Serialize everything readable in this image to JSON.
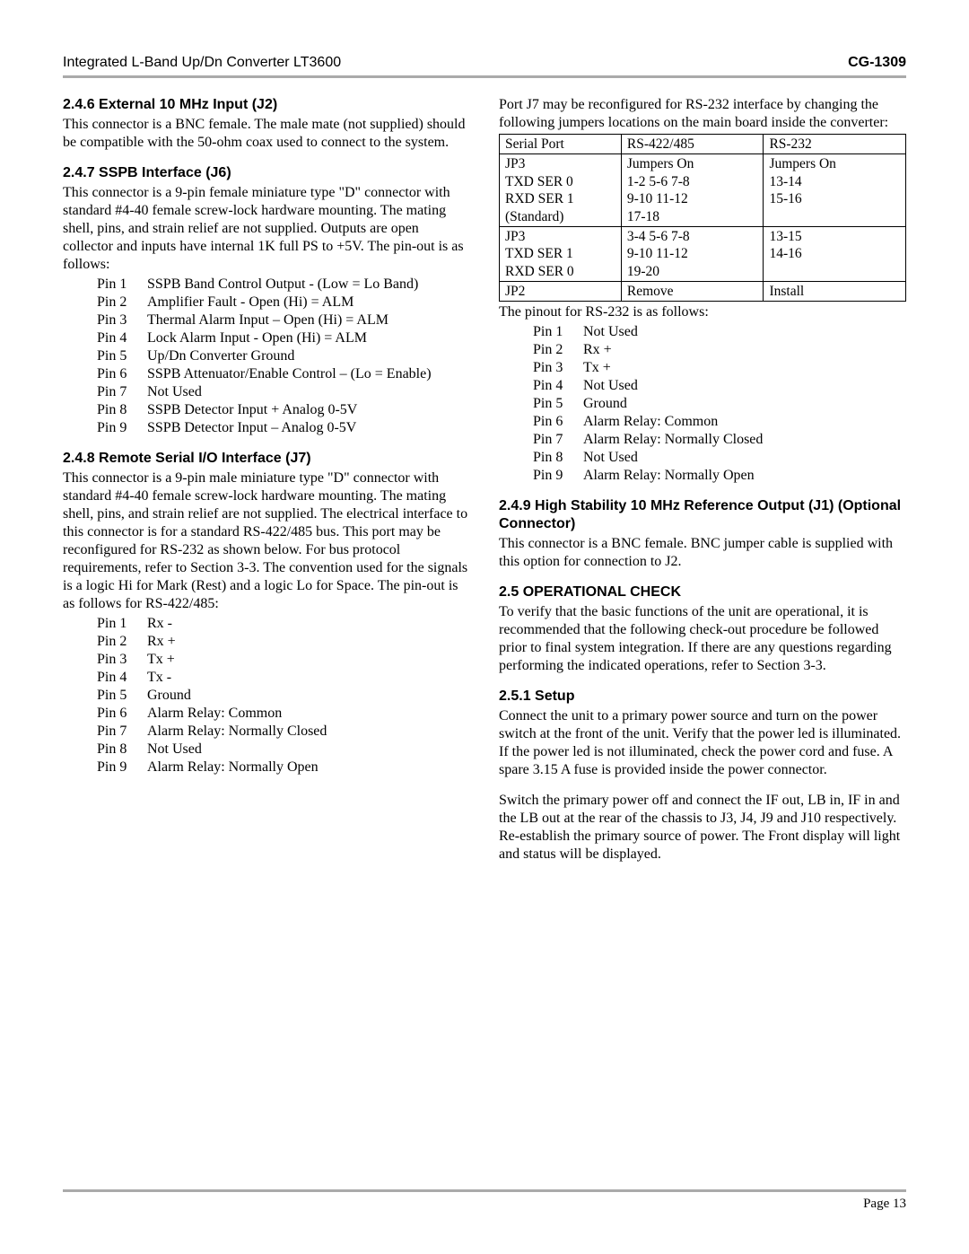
{
  "header": {
    "left": "Integrated L-Band Up/Dn Converter LT3600",
    "right": "CG-1309"
  },
  "footer": {
    "page": "Page 13"
  },
  "left_col": {
    "s246": {
      "heading": "2.4.6 External 10 MHz Input (J2)",
      "body": "This connector is a BNC female. The male mate (not supplied) should be compatible with the 50-ohm coax used to connect to the system."
    },
    "s247": {
      "heading": "2.4.7 SSPB Interface (J6)",
      "body": "This connector is a 9-pin female miniature type \"D\" connector with standard #4-40 female screw-lock hardware mounting. The mating shell, pins, and strain relief are not supplied. Outputs are open collector and inputs have internal 1K full PS to +5V.  The pin-out is as follows:",
      "pins": [
        {
          "pin": "Pin 1",
          "desc": "SSPB Band Control Output - (Low = Lo Band)"
        },
        {
          "pin": "Pin 2",
          "desc": "Amplifier Fault - Open (Hi) = ALM"
        },
        {
          "pin": "Pin 3",
          "desc": "Thermal Alarm Input – Open (Hi) = ALM"
        },
        {
          "pin": "Pin 4",
          "desc": "Lock Alarm Input - Open (Hi) = ALM"
        },
        {
          "pin": "Pin 5",
          "desc": "Up/Dn Converter Ground"
        },
        {
          "pin": "Pin 6",
          "desc": "SSPB Attenuator/Enable Control – (Lo = Enable)"
        },
        {
          "pin": "Pin 7",
          "desc": "Not Used"
        },
        {
          "pin": "Pin 8",
          "desc": "SSPB Detector Input + Analog 0-5V"
        },
        {
          "pin": "Pin 9",
          "desc": "SSPB Detector Input – Analog 0-5V"
        }
      ]
    },
    "s248": {
      "heading": "2.4.8 Remote Serial I/O Interface (J7)",
      "body": "This connector is a 9-pin male miniature type \"D\" connector with standard #4-40 female screw-lock hardware mounting. The mating shell, pins, and strain relief are not supplied. The electrical interface to this connector is for a standard RS-422/485 bus. This port may be reconfigured for RS-232 as shown below.  For bus protocol requirements, refer to Section 3-3. The convention used for the signals is a logic Hi for Mark (Rest) and a logic Lo for Space. The pin-out is as follows for RS-422/485:",
      "pins": [
        {
          "pin": "Pin 1",
          "desc": "Rx -"
        },
        {
          "pin": "Pin 2",
          "desc": "Rx +"
        },
        {
          "pin": "Pin 3",
          "desc": "Tx +"
        },
        {
          "pin": "Pin 4",
          "desc": "Tx -"
        },
        {
          "pin": "Pin 5",
          "desc": "Ground"
        },
        {
          "pin": "Pin 6",
          "desc": "Alarm Relay:  Common"
        },
        {
          "pin": "Pin 7",
          "desc": "Alarm Relay:  Normally Closed"
        },
        {
          "pin": "Pin 8",
          "desc": "Not Used"
        },
        {
          "pin": "Pin 9",
          "desc": "Alarm Relay:  Normally Open"
        }
      ]
    }
  },
  "right_col": {
    "intro": "Port J7 may be reconfigured for RS-232 interface by changing the following jumpers locations on the main board inside the converter:",
    "jumper_table": {
      "rows": [
        [
          "Serial Port",
          "RS-422/485",
          "RS-232"
        ],
        [
          "JP3\nTXD SER 0\nRXD SER 1\n(Standard)",
          "Jumpers On\n1-2  5-6  7-8\n9-10 11-12\n17-18",
          "Jumpers On\n13-14\n15-16"
        ],
        [
          "JP3\nTXD SER 1\nRXD SER 0",
          "3-4 5-6 7-8\n9-10 11-12\n19-20",
          "13-15\n14-16"
        ],
        [
          "JP2",
          "Remove",
          "Install"
        ]
      ],
      "col_widths": [
        "30%",
        "35%",
        "35%"
      ]
    },
    "rs232_intro": "The pinout for RS-232 is as follows:",
    "rs232_pins": [
      {
        "pin": "Pin 1",
        "desc": "Not Used"
      },
      {
        "pin": "Pin 2",
        "desc": "Rx +"
      },
      {
        "pin": "Pin 3",
        "desc": "Tx +"
      },
      {
        "pin": "Pin 4",
        "desc": "Not Used"
      },
      {
        "pin": "Pin 5",
        "desc": "Ground"
      },
      {
        "pin": "Pin 6",
        "desc": "Alarm Relay:  Common"
      },
      {
        "pin": "Pin 7",
        "desc": "Alarm Relay:  Normally Closed"
      },
      {
        "pin": "Pin 8",
        "desc": "Not Used"
      },
      {
        "pin": "Pin 9",
        "desc": "Alarm Relay:  Normally Open"
      }
    ],
    "s249": {
      "heading": "2.4.9 High Stability 10 MHz Reference Output (J1) (Optional Connector)",
      "body": "This connector is a BNC female. BNC jumper cable is supplied with this option for connection to J2."
    },
    "s25": {
      "heading": "2.5 OPERATIONAL CHECK",
      "body": "To verify that the basic functions of the unit are operational, it is recommended that the following check-out procedure be followed prior to final system integration. If there are any questions regarding performing the indicated operations, refer to Section 3-3."
    },
    "s251": {
      "heading": "2.5.1 Setup",
      "body1": "Connect the unit to a primary power source and turn on the power switch at the front of the unit. Verify that the power led is illuminated. If the power led is not illuminated, check the power cord and fuse. A spare 3.15 A fuse is provided inside the power connector.",
      "body2": "Switch the primary power off and connect the IF out, LB in, IF in and the LB out at the rear of the chassis to J3, J4, J9 and J10 respectively. Re-establish the primary source of power.  The Front display will light and status will be displayed."
    }
  }
}
